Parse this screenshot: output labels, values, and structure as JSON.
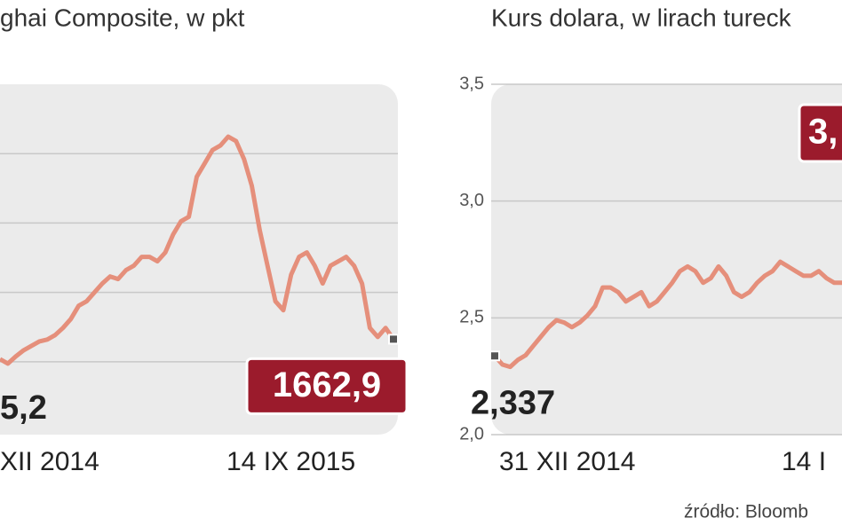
{
  "chart_data": [
    {
      "type": "line",
      "title": "ghai Composite, w pkt",
      "color": "#e58f7b",
      "ylim": [
        975,
        3500
      ],
      "gridlines": [
        1500,
        2000,
        2500,
        3000
      ],
      "x_labels": [
        "XII 2014",
        "14 IX 2015"
      ],
      "annotations": [
        "5,2"
      ],
      "values": [
        1519,
        1487,
        1538,
        1583,
        1615,
        1647,
        1660,
        1692,
        1744,
        1808,
        1904,
        1936,
        2000,
        2064,
        2115,
        2096,
        2160,
        2192,
        2256,
        2256,
        2224,
        2288,
        2417,
        2513,
        2545,
        2833,
        2929,
        3026,
        3058,
        3122,
        3090,
        2962,
        2769,
        2449,
        2192,
        1936,
        1872,
        2128,
        2256,
        2288,
        2192,
        2064,
        2192,
        2224,
        2256,
        2192,
        2064,
        1744,
        1679,
        1744,
        1662.9
      ],
      "value_labels": [
        null,
        null,
        null,
        null,
        null,
        null,
        null,
        null,
        null,
        null,
        null,
        null,
        null,
        null,
        null,
        null,
        null,
        null,
        null,
        null,
        null,
        null,
        null,
        null,
        null,
        null,
        null,
        null,
        null,
        null,
        null,
        null,
        null,
        null,
        null,
        null,
        null,
        null,
        null,
        null,
        null,
        null,
        null,
        null,
        null,
        null,
        null,
        null,
        null,
        null,
        "1662,9"
      ]
    },
    {
      "type": "line",
      "title": "Kurs dolara, w lirach tureck",
      "color": "#e58f7b",
      "ylim": [
        2.0,
        3.5
      ],
      "yticks": [
        {
          "value": 2.0,
          "label": "2,0"
        },
        {
          "value": 2.5,
          "label": "2,5"
        },
        {
          "value": 3.0,
          "label": "3,0"
        },
        {
          "value": 3.5,
          "label": "3,5"
        }
      ],
      "x_labels": [
        "31 XII 2014",
        "14 I"
      ],
      "annotations": [
        "3,"
      ],
      "source": "źródło: Bloomb",
      "values": [
        2.337,
        2.3,
        2.29,
        2.32,
        2.34,
        2.38,
        2.42,
        2.46,
        2.49,
        2.48,
        2.46,
        2.48,
        2.51,
        2.55,
        2.63,
        2.63,
        2.61,
        2.57,
        2.59,
        2.61,
        2.55,
        2.57,
        2.61,
        2.65,
        2.7,
        2.72,
        2.7,
        2.65,
        2.67,
        2.72,
        2.68,
        2.61,
        2.59,
        2.61,
        2.65,
        2.68,
        2.7,
        2.74,
        2.72,
        2.7,
        2.68,
        2.68,
        2.7,
        2.67,
        2.65,
        2.65
      ],
      "value_labels": [
        "2,337",
        null,
        null,
        null,
        null,
        null,
        null,
        null,
        null,
        null,
        null,
        null,
        null,
        null,
        null,
        null,
        null,
        null,
        null,
        null,
        null,
        null,
        null,
        null,
        null,
        null,
        null,
        null,
        null,
        null,
        null,
        null,
        null,
        null,
        null,
        null,
        null,
        null,
        null,
        null,
        null,
        null,
        null,
        null,
        null,
        null
      ]
    }
  ]
}
